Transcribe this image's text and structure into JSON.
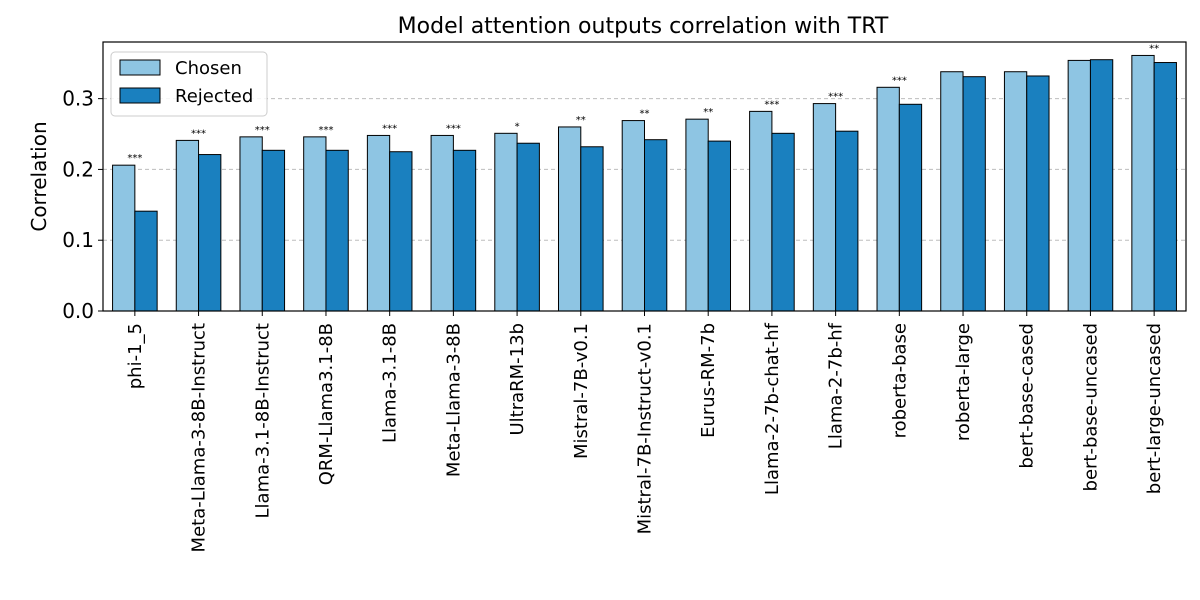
{
  "chart_data": {
    "type": "bar",
    "title": "Model attention outputs correlation with TRT",
    "xlabel": "",
    "ylabel": "Correlation",
    "ylim": [
      0,
      0.38
    ],
    "yticks": [
      "0.0",
      "0.1",
      "0.2",
      "0.3"
    ],
    "grid": "horizontal dashed",
    "legend_position": "top-left",
    "categories": [
      "phi-1_5",
      "Meta-Llama-3-8B-Instruct",
      "Llama-3.1-8B-Instruct",
      "QRM-Llama3.1-8B",
      "Llama-3.1-8B",
      "Meta-Llama-3-8B",
      "UltraRM-13b",
      "Mistral-7B-v0.1",
      "Mistral-7B-Instruct-v0.1",
      "Eurus-RM-7b",
      "Llama-2-7b-chat-hf",
      "Llama-2-7b-hf",
      "roberta-base",
      "roberta-large",
      "bert-base-cased",
      "bert-base-uncased",
      "bert-large-uncased"
    ],
    "series": [
      {
        "name": "Chosen",
        "color": "#8ec5e3",
        "values": [
          0.206,
          0.241,
          0.246,
          0.246,
          0.248,
          0.248,
          0.251,
          0.26,
          0.269,
          0.271,
          0.282,
          0.293,
          0.316,
          0.338,
          0.338,
          0.354,
          0.361
        ]
      },
      {
        "name": "Rejected",
        "color": "#1a80bf",
        "values": [
          0.141,
          0.221,
          0.227,
          0.227,
          0.225,
          0.227,
          0.237,
          0.232,
          0.242,
          0.24,
          0.251,
          0.254,
          0.292,
          0.331,
          0.332,
          0.355,
          0.351
        ]
      }
    ],
    "significance": [
      "***",
      "***",
      "***",
      "***",
      "***",
      "***",
      "*",
      "**",
      "**",
      "**",
      "***",
      "***",
      "***",
      "",
      "",
      "",
      "**"
    ]
  }
}
